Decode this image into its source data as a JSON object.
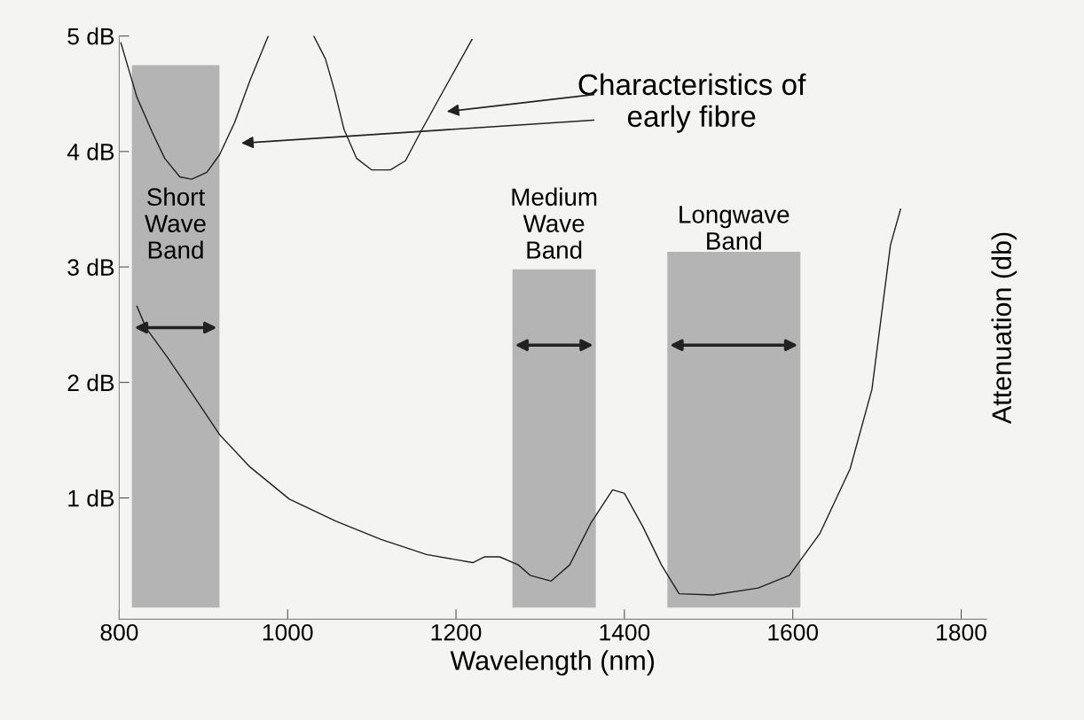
{
  "chart_data": {
    "type": "line",
    "xlabel": "Wavelength (nm)",
    "ylabel": "Attenuation (db)",
    "xlim": [
      800,
      1830
    ],
    "ylim": [
      -0.05,
      5.0
    ],
    "xticks": [
      800,
      1000,
      1200,
      1400,
      1600,
      1800
    ],
    "yticks": [
      {
        "value": 1,
        "label": "1 dB"
      },
      {
        "value": 2,
        "label": "2 dB"
      },
      {
        "value": 3,
        "label": "3 dB"
      },
      {
        "value": 4,
        "label": "4 dB"
      },
      {
        "value": 5,
        "label": "5 dB"
      }
    ],
    "grid": false,
    "legend": false,
    "series": [
      {
        "color": "#202020",
        "x": [
          802,
          821,
          839,
          854,
          872,
          886,
          904,
          919,
          937,
          955,
          977,
          1000,
          1031,
          1045,
          1056,
          1067,
          1082,
          1100,
          1122,
          1140,
          1158,
          1183,
          1219
        ],
        "values": [
          4.94,
          4.47,
          4.17,
          3.94,
          3.78,
          3.76,
          3.82,
          3.97,
          4.25,
          4.61,
          5.0,
          null,
          5.0,
          4.8,
          4.52,
          4.19,
          3.94,
          3.84,
          3.84,
          3.92,
          4.17,
          4.5,
          4.97
        ]
      },
      {
        "color": "#202020",
        "x": [
          821,
          832,
          857,
          886,
          919,
          955,
          1002,
          1057,
          1111,
          1165,
          1220,
          1234,
          1252,
          1274,
          1288,
          1313,
          1335,
          1360,
          1386,
          1400,
          1422,
          1444,
          1465,
          1505,
          1559,
          1596,
          1632,
          1668,
          1694,
          1716,
          1728
        ],
        "values": [
          2.66,
          2.47,
          2.22,
          1.91,
          1.55,
          1.27,
          0.99,
          0.8,
          0.64,
          0.51,
          0.44,
          0.49,
          0.49,
          0.42,
          0.33,
          0.28,
          0.42,
          0.78,
          1.07,
          1.04,
          0.75,
          0.42,
          0.17,
          0.16,
          0.22,
          0.33,
          0.69,
          1.25,
          1.94,
          3.19,
          3.5
        ]
      }
    ],
    "bands": [
      {
        "axis": "x",
        "from": 815,
        "to": 919,
        "label": "Short\nWave\nBand",
        "color": "#b4b4b4"
      },
      {
        "axis": "x",
        "from": 1267,
        "to": 1366,
        "label": "Medium\nWave\nBand",
        "color": "#b4b4b4"
      },
      {
        "axis": "x",
        "from": 1451,
        "to": 1609,
        "label": "Longwave\nBand",
        "color": "#b4b4b4"
      }
    ],
    "annotations": [
      "Characteristics of\nearly fibre"
    ]
  }
}
